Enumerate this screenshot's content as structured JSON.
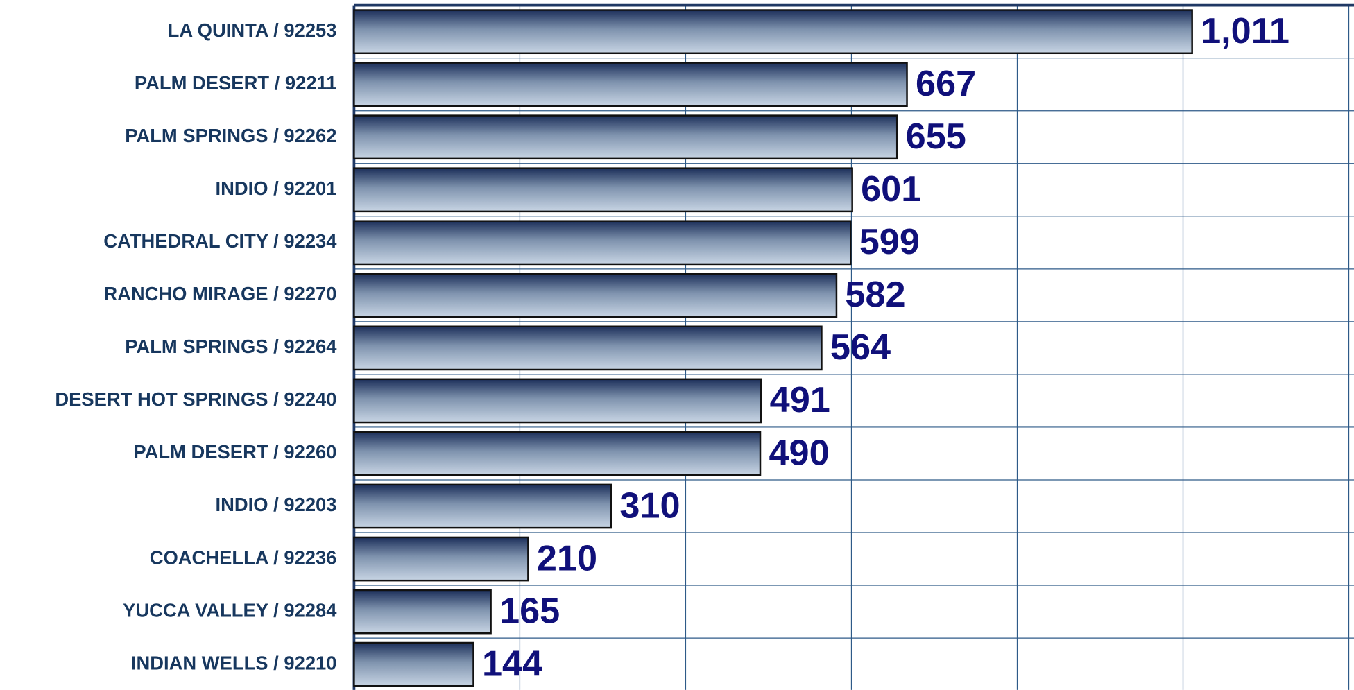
{
  "chart_data": {
    "type": "barh",
    "categories": [
      "LA QUINTA / 92253",
      "PALM DESERT / 92211",
      "PALM SPRINGS / 92262",
      "INDIO / 92201",
      "CATHEDRAL CITY / 92234",
      "RANCHO MIRAGE / 92270",
      "PALM SPRINGS / 92264",
      "DESERT HOT SPRINGS / 92240",
      "PALM DESERT / 92260",
      "INDIO / 92203",
      "COACHELLA / 92236",
      "YUCCA VALLEY / 92284",
      "INDIAN WELLS / 92210"
    ],
    "values": [
      1011,
      667,
      655,
      601,
      599,
      582,
      564,
      491,
      490,
      310,
      210,
      165,
      144
    ],
    "value_labels": [
      "1,011",
      "667",
      "655",
      "601",
      "599",
      "582",
      "564",
      "491",
      "490",
      "310",
      "210",
      "165",
      "144"
    ],
    "xlim": [
      0,
      1200
    ],
    "xticks": [
      0,
      200,
      400,
      600,
      800,
      1000,
      1200
    ],
    "grid": true
  }
}
